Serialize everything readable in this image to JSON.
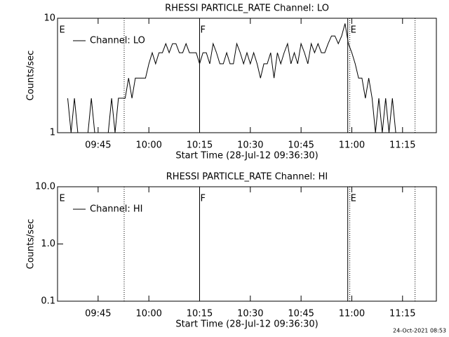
{
  "chart_data": [
    {
      "type": "line",
      "title": "RHESSI PARTICLE_RATE Channel: LO",
      "ylabel": "Counts/sec",
      "xlabel": "Start Time (28-Jul-12 09:36:30)",
      "x": [
        36,
        37,
        38,
        39,
        40,
        41,
        42,
        43,
        44,
        45,
        46,
        47,
        48,
        49,
        50,
        51,
        52,
        53,
        54,
        55,
        56,
        57,
        58,
        59,
        60,
        61,
        62,
        63,
        64,
        65,
        66,
        67,
        68,
        69,
        70,
        71,
        72,
        73,
        74,
        75,
        76,
        77,
        78,
        79,
        80,
        81,
        82,
        83,
        84,
        85,
        86,
        87,
        88,
        89,
        90,
        91,
        92,
        93,
        94,
        95,
        96,
        97,
        98,
        99,
        100,
        101,
        102,
        103,
        104,
        105,
        106,
        107,
        108,
        109,
        110,
        111,
        112,
        113,
        114,
        115,
        116,
        117,
        118,
        119,
        120,
        121,
        122,
        123,
        124,
        125,
        126,
        127,
        128,
        129,
        130,
        131,
        132,
        133,
        134
      ],
      "series": [
        {
          "name": "Channel: LO",
          "color": "#000000",
          "values": [
            2,
            1,
            2,
            1,
            1,
            1,
            1,
            2,
            1,
            1,
            1,
            1,
            1,
            2,
            1,
            2,
            2,
            2,
            3,
            2,
            3,
            3,
            3,
            3,
            4,
            5,
            4,
            5,
            5,
            6,
            5,
            6,
            6,
            5,
            5,
            6,
            5,
            5,
            5,
            4,
            5,
            5,
            4,
            6,
            5,
            4,
            4,
            5,
            4,
            4,
            6,
            5,
            4,
            5,
            4,
            5,
            4,
            3,
            4,
            4,
            5,
            3,
            5,
            4,
            5,
            6,
            4,
            5,
            4,
            6,
            5,
            4,
            6,
            5,
            6,
            5,
            5,
            6,
            7,
            7,
            6,
            7,
            9,
            6,
            5,
            4,
            3,
            3,
            2,
            3,
            2,
            1,
            2,
            1,
            2,
            1,
            2,
            1,
            1
          ]
        }
      ],
      "xlim": [
        33,
        145
      ],
      "xticks": [
        {
          "value": 45,
          "label": "09:45"
        },
        {
          "value": 60,
          "label": "10:00"
        },
        {
          "value": 75,
          "label": "10:15"
        },
        {
          "value": 90,
          "label": "10:30"
        },
        {
          "value": 105,
          "label": "10:45"
        },
        {
          "value": 120,
          "label": "11:00"
        },
        {
          "value": 135,
          "label": "11:15"
        }
      ],
      "ylim": [
        1,
        10
      ],
      "yticks": [
        1,
        10
      ],
      "log_y": true,
      "legend": "upper left",
      "vlines": [
        {
          "x": 52.7,
          "style": "dotted"
        },
        {
          "x": 75,
          "style": "solid"
        },
        {
          "x": 118.8,
          "style": "solid"
        },
        {
          "x": 119.4,
          "style": "dotted"
        },
        {
          "x": 138.7,
          "style": "dotted"
        }
      ],
      "annotations": [
        {
          "x": 33.3,
          "text": "E"
        },
        {
          "x": 75,
          "text": "F"
        },
        {
          "x": 119.4,
          "text": "E"
        }
      ]
    },
    {
      "type": "line",
      "title": "RHESSI PARTICLE_RATE Channel: HI",
      "ylabel": "Counts/sec",
      "xlabel": "Start Time (28-Jul-12 09:36:30)",
      "series": [
        {
          "name": "Channel: HI",
          "color": "#000000"
        }
      ],
      "xlim": [
        33,
        145
      ],
      "xticks": [
        {
          "value": 45,
          "label": "09:45"
        },
        {
          "value": 60,
          "label": "10:00"
        },
        {
          "value": 75,
          "label": "10:15"
        },
        {
          "value": 90,
          "label": "10:30"
        },
        {
          "value": 105,
          "label": "10:45"
        },
        {
          "value": 120,
          "label": "11:00"
        },
        {
          "value": 135,
          "label": "11:15"
        }
      ],
      "ylim": [
        0.1,
        10
      ],
      "yticks": [
        0.1,
        {
          "value": 1,
          "label": "1.0"
        },
        {
          "value": 10,
          "label": "10.0"
        }
      ],
      "log_y": true,
      "legend": "upper left",
      "vlines": [
        {
          "x": 52.7,
          "style": "dotted"
        },
        {
          "x": 75,
          "style": "solid"
        },
        {
          "x": 118.8,
          "style": "solid"
        },
        {
          "x": 119.4,
          "style": "dotted"
        },
        {
          "x": 138.7,
          "style": "dotted"
        }
      ],
      "annotations": [
        {
          "x": 33.3,
          "text": "E"
        },
        {
          "x": 75,
          "text": "F"
        },
        {
          "x": 119.4,
          "text": "E"
        }
      ]
    }
  ],
  "footer": "24-Oct-2021 08:53"
}
